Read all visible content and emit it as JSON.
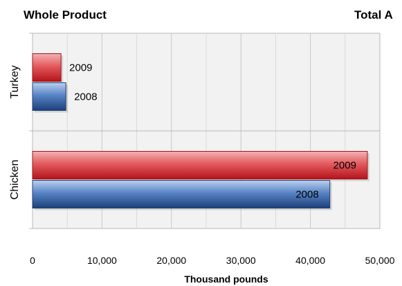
{
  "headings": {
    "left": "Whole  Product",
    "right": "Total A"
  },
  "chart_data": {
    "type": "bar",
    "orientation": "horizontal",
    "categories": [
      "Turkey",
      "Chicken"
    ],
    "series": [
      {
        "name": "2009",
        "values": [
          4100,
          48200
        ],
        "color": "#e0555a"
      },
      {
        "name": "2008",
        "values": [
          4800,
          42800
        ],
        "color": "#4f7cc0"
      }
    ],
    "bar_labels": [
      "2009",
      "2008"
    ],
    "xlabel": "Thousand pounds",
    "xlim": [
      0,
      50000
    ],
    "xticks": [
      0,
      10000,
      20000,
      30000,
      40000,
      50000
    ],
    "xtick_labels": [
      "0",
      "10,000",
      "20,000",
      "30,000",
      "40,000",
      "50,000"
    ],
    "grid": true
  }
}
